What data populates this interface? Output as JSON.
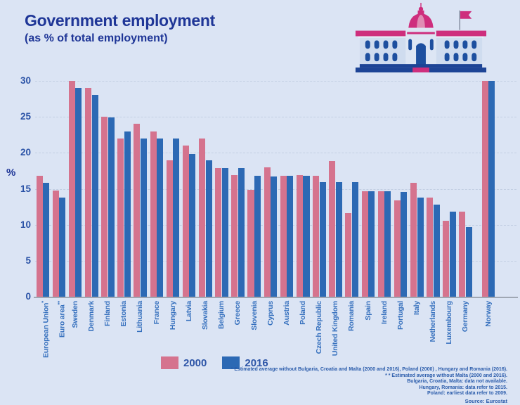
{
  "header": {
    "title": "Government employment",
    "subtitle": "(as % of total employment)"
  },
  "chart_data": {
    "type": "bar",
    "title": "Government employment (as % of total employment)",
    "xlabel": "",
    "ylabel": "%",
    "ylim": [
      0,
      30
    ],
    "yticks": [
      0,
      5,
      10,
      15,
      20,
      25,
      30
    ],
    "grid": "horizontal-dashed",
    "legend_position": "bottom",
    "separated_last_category": true,
    "categories": [
      "European Union*",
      "Euro area**",
      "Sweden",
      "Denmark",
      "Finland",
      "Estonia",
      "Lithuania",
      "France",
      "Hungary",
      "Latvia",
      "Slovakia",
      "Belgium",
      "Greece",
      "Slovenia",
      "Cyprus",
      "Austria",
      "Poland",
      "Czech Republic",
      "United Kingdom",
      "Romania",
      "Spain",
      "Ireland",
      "Portugal",
      "Italy",
      "Netherlands",
      "Luxembourg",
      "Germany",
      "Norway"
    ],
    "series": [
      {
        "name": "2000",
        "color": "#d5738e",
        "values": [
          16.8,
          14.8,
          30,
          29,
          25,
          22,
          24,
          23,
          19,
          21,
          22,
          17.9,
          16.9,
          14.9,
          18,
          16.8,
          16.9,
          16.8,
          18.9,
          11.6,
          14.7,
          14.7,
          13.4,
          15.8,
          13.8,
          10.6,
          11.8,
          30
        ]
      },
      {
        "name": "2016",
        "color": "#2c69b4",
        "values": [
          15.8,
          13.8,
          29,
          28,
          24.9,
          23,
          22,
          22,
          22,
          19.8,
          19,
          17.9,
          17.9,
          16.8,
          16.7,
          16.8,
          16.8,
          15.9,
          15.9,
          15.9,
          14.7,
          14.7,
          14.6,
          13.8,
          12.8,
          11.8,
          9.7,
          30
        ]
      }
    ]
  },
  "legend": {
    "items": [
      {
        "label": "2000",
        "color": "#d5738e"
      },
      {
        "label": "2016",
        "color": "#2c69b4"
      }
    ]
  },
  "footnotes": [
    "* Estimated average without Bulgaria, Croatia and Malta (2000 and 2016), Poland (2000) , Hungary and Romania (2016).",
    "* * Estimated average without Malta (2000 and 2016).",
    "Bulgaria, Croatia, Malta: data not available.",
    "Hungary, Romania: data refer to 2015.",
    "Poland: earliest data refer to 2009."
  ],
  "source": "Source: Eurostat",
  "icons": {
    "building": "government-building-with-dome-and-flag-icon"
  },
  "colors": {
    "background": "#dbe4f4",
    "title_text": "#1f3697",
    "axis_text": "#2a52a6",
    "category_text": "#346fbd",
    "gridline": "#c3cfe3",
    "axis_line": "#9fa7b3",
    "accent_magenta": "#ce2e7d",
    "building_facade": "#cfdcef",
    "building_window": "#1d4f9f"
  }
}
